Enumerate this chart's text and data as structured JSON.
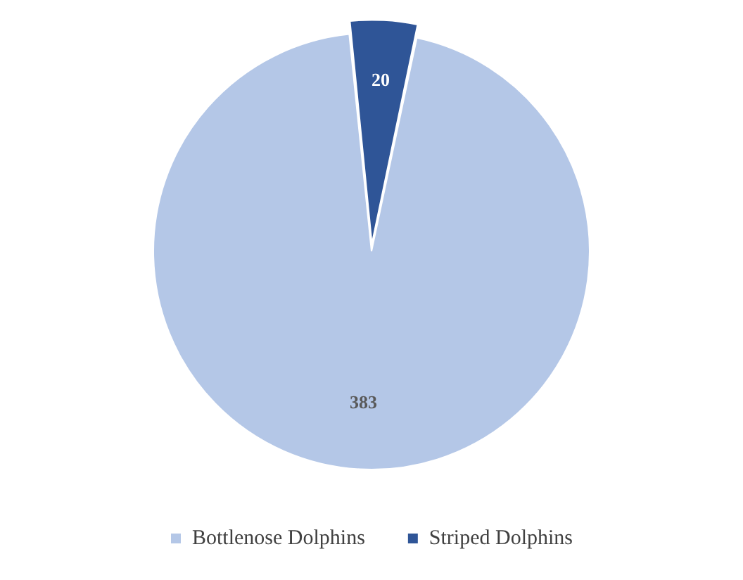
{
  "chart_data": {
    "type": "pie",
    "categories": [
      "Bottlenose Dolphins",
      "Striped Dolphins"
    ],
    "values": [
      383,
      20
    ],
    "colors": [
      "#b4c7e7",
      "#2f5597"
    ],
    "data_labels": true,
    "legend": "bottom"
  }
}
